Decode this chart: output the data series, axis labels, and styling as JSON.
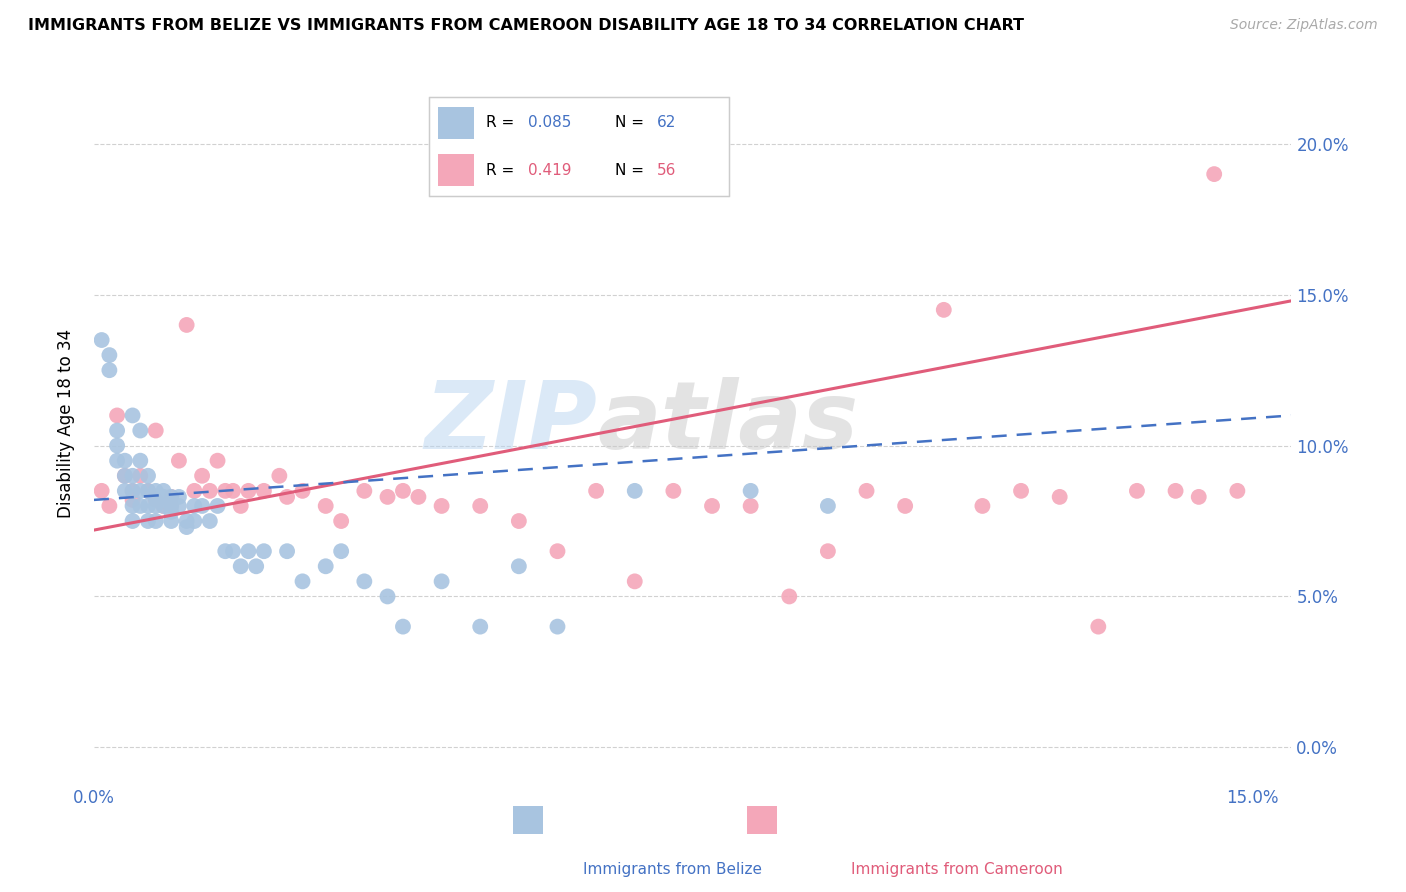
{
  "title": "IMMIGRANTS FROM BELIZE VS IMMIGRANTS FROM CAMEROON DISABILITY AGE 18 TO 34 CORRELATION CHART",
  "source": "Source: ZipAtlas.com",
  "ylabel": "Disability Age 18 to 34",
  "xlim": [
    0.0,
    0.155
  ],
  "ylim": [
    -0.01,
    0.225
  ],
  "xticks": [
    0.0,
    0.15
  ],
  "xtick_labels": [
    "0.0%",
    "15.0%"
  ],
  "yticks": [
    0.0,
    0.05,
    0.1,
    0.15,
    0.2
  ],
  "ytick_labels_right": [
    "0.0%",
    "5.0%",
    "10.0%",
    "15.0%",
    "20.0%"
  ],
  "belize_color": "#a8c4e0",
  "cameroon_color": "#f4a7b9",
  "belize_line_color": "#4472c4",
  "cameroon_line_color": "#e05c7a",
  "legend_belize_R": "0.085",
  "legend_belize_N": "62",
  "legend_cameroon_R": "0.419",
  "legend_cameroon_N": "56",
  "watermark_zip": "ZIP",
  "watermark_atlas": "atlas",
  "belize_x": [
    0.001,
    0.002,
    0.002,
    0.003,
    0.003,
    0.003,
    0.004,
    0.004,
    0.004,
    0.005,
    0.005,
    0.005,
    0.005,
    0.005,
    0.006,
    0.006,
    0.006,
    0.006,
    0.007,
    0.007,
    0.007,
    0.007,
    0.008,
    0.008,
    0.008,
    0.008,
    0.009,
    0.009,
    0.009,
    0.01,
    0.01,
    0.01,
    0.01,
    0.011,
    0.011,
    0.012,
    0.012,
    0.013,
    0.013,
    0.014,
    0.015,
    0.016,
    0.017,
    0.018,
    0.019,
    0.02,
    0.021,
    0.022,
    0.025,
    0.027,
    0.03,
    0.032,
    0.035,
    0.038,
    0.04,
    0.045,
    0.05,
    0.055,
    0.06,
    0.07,
    0.085,
    0.095
  ],
  "belize_y": [
    0.135,
    0.13,
    0.125,
    0.105,
    0.1,
    0.095,
    0.095,
    0.09,
    0.085,
    0.11,
    0.09,
    0.085,
    0.08,
    0.075,
    0.105,
    0.095,
    0.085,
    0.08,
    0.09,
    0.085,
    0.08,
    0.075,
    0.085,
    0.083,
    0.08,
    0.075,
    0.085,
    0.083,
    0.08,
    0.083,
    0.08,
    0.078,
    0.075,
    0.083,
    0.08,
    0.075,
    0.073,
    0.08,
    0.075,
    0.08,
    0.075,
    0.08,
    0.065,
    0.065,
    0.06,
    0.065,
    0.06,
    0.065,
    0.065,
    0.055,
    0.06,
    0.065,
    0.055,
    0.05,
    0.04,
    0.055,
    0.04,
    0.06,
    0.04,
    0.085,
    0.085,
    0.08
  ],
  "cameroon_x": [
    0.001,
    0.002,
    0.003,
    0.004,
    0.005,
    0.005,
    0.006,
    0.007,
    0.008,
    0.008,
    0.009,
    0.01,
    0.01,
    0.011,
    0.012,
    0.013,
    0.014,
    0.015,
    0.016,
    0.017,
    0.018,
    0.019,
    0.02,
    0.022,
    0.024,
    0.025,
    0.027,
    0.03,
    0.032,
    0.035,
    0.038,
    0.04,
    0.042,
    0.045,
    0.05,
    0.055,
    0.06,
    0.065,
    0.07,
    0.075,
    0.08,
    0.085,
    0.09,
    0.095,
    0.1,
    0.105,
    0.11,
    0.115,
    0.12,
    0.125,
    0.13,
    0.135,
    0.14,
    0.143,
    0.145,
    0.148
  ],
  "cameroon_y": [
    0.085,
    0.08,
    0.11,
    0.09,
    0.085,
    0.082,
    0.09,
    0.085,
    0.105,
    0.082,
    0.08,
    0.083,
    0.08,
    0.095,
    0.14,
    0.085,
    0.09,
    0.085,
    0.095,
    0.085,
    0.085,
    0.08,
    0.085,
    0.085,
    0.09,
    0.083,
    0.085,
    0.08,
    0.075,
    0.085,
    0.083,
    0.085,
    0.083,
    0.08,
    0.08,
    0.075,
    0.065,
    0.085,
    0.055,
    0.085,
    0.08,
    0.08,
    0.05,
    0.065,
    0.085,
    0.08,
    0.145,
    0.08,
    0.085,
    0.083,
    0.04,
    0.085,
    0.085,
    0.083,
    0.19,
    0.085
  ],
  "belize_trend_x": [
    0.0,
    0.155
  ],
  "belize_trend_y": [
    0.082,
    0.11
  ],
  "cameroon_trend_x": [
    0.0,
    0.155
  ],
  "cameroon_trend_y": [
    0.072,
    0.148
  ]
}
